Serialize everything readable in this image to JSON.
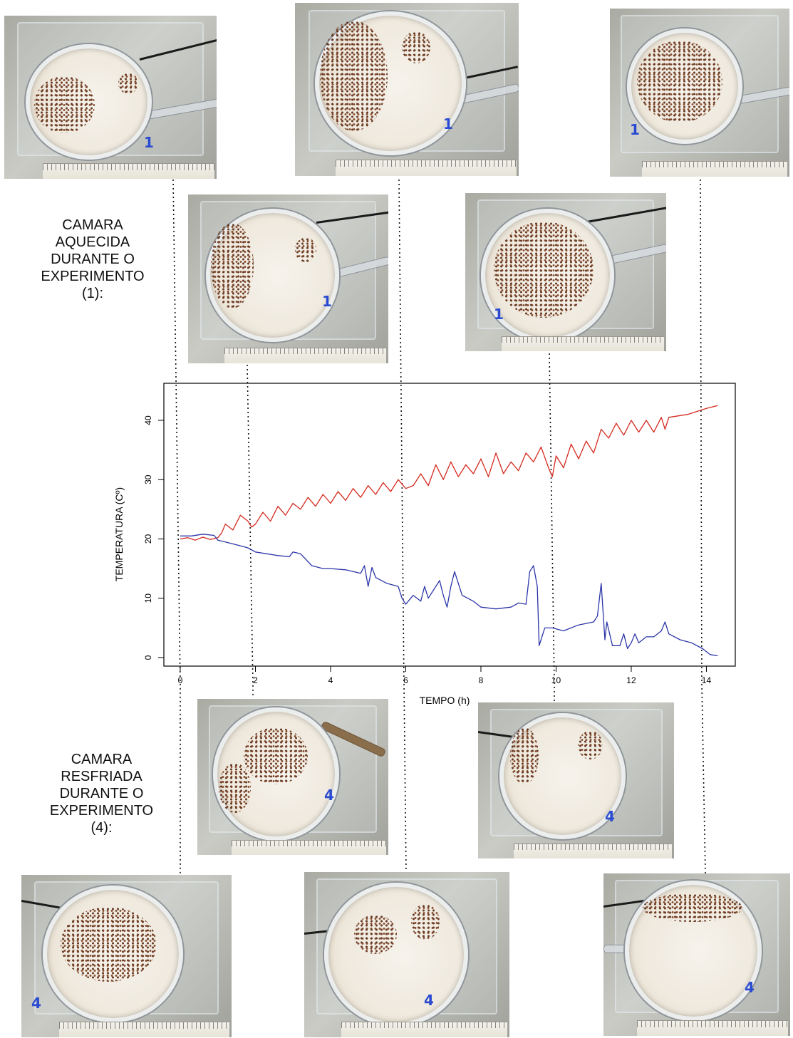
{
  "heated_label": [
    "CAMARA",
    "AQUECIDA",
    "DURANTE O",
    "EXPERIMENTO",
    "(1):"
  ],
  "cooled_label": [
    "CAMARA",
    "RESFRIADA",
    "DURANTE O",
    "EXPERIMENTO",
    "(4):"
  ],
  "photos": {
    "heated": [
      {
        "hour": 0,
        "chamber_mark": "1"
      },
      {
        "hour": 2,
        "chamber_mark": "1"
      },
      {
        "hour": 6,
        "chamber_mark": "1"
      },
      {
        "hour": 10,
        "chamber_mark": "1"
      },
      {
        "hour": 14,
        "chamber_mark": "1"
      }
    ],
    "cooled": [
      {
        "hour": 0,
        "chamber_mark": "4"
      },
      {
        "hour": 2,
        "chamber_mark": "4"
      },
      {
        "hour": 6,
        "chamber_mark": "4"
      },
      {
        "hour": 10,
        "chamber_mark": "4"
      },
      {
        "hour": 14,
        "chamber_mark": "4"
      }
    ]
  },
  "colors": {
    "heated_series": "#d42a1f",
    "cooled_series": "#2b35a8",
    "axis": "#000000",
    "guide_line": "#111111"
  },
  "chart_data": {
    "type": "line",
    "title": "",
    "xlabel": "TEMPO (h)",
    "ylabel": "TEMPERATURA (Cº)",
    "xlim": [
      0,
      14.2
    ],
    "ylim": [
      0,
      43
    ],
    "xticks": [
      0,
      2,
      4,
      6,
      8,
      10,
      12,
      14
    ],
    "yticks": [
      0,
      10,
      20,
      30,
      40
    ],
    "grid": false,
    "series": [
      {
        "color": "#d42a1f",
        "x": [
          0,
          0.2,
          0.4,
          0.6,
          0.8,
          1.0,
          1.1,
          1.2,
          1.4,
          1.6,
          1.8,
          1.9,
          2.0,
          2.2,
          2.4,
          2.6,
          2.8,
          3.0,
          3.2,
          3.4,
          3.6,
          3.8,
          4.0,
          4.2,
          4.4,
          4.6,
          4.8,
          5.0,
          5.2,
          5.4,
          5.6,
          5.8,
          6.0,
          6.2,
          6.4,
          6.6,
          6.8,
          7.0,
          7.2,
          7.4,
          7.6,
          7.8,
          8.0,
          8.2,
          8.4,
          8.6,
          8.8,
          9.0,
          9.2,
          9.4,
          9.6,
          9.8,
          9.9,
          10.0,
          10.2,
          10.4,
          10.6,
          10.8,
          11.0,
          11.2,
          11.4,
          11.6,
          11.8,
          12.0,
          12.2,
          12.4,
          12.6,
          12.8,
          12.9,
          13.0,
          13.5,
          14.0,
          14.3
        ],
        "y": [
          20,
          20.2,
          19.8,
          20.3,
          19.9,
          20.2,
          21,
          22.5,
          21.5,
          24,
          23,
          22,
          22.5,
          24.5,
          23,
          25.5,
          24,
          26,
          25,
          27,
          25.5,
          27.5,
          26,
          28,
          26.5,
          28.5,
          27,
          29,
          27.5,
          29.5,
          28,
          30,
          28.5,
          29,
          31,
          29,
          32.5,
          30,
          33,
          30.5,
          32.5,
          31,
          33.5,
          30.5,
          34.5,
          31,
          33,
          31.5,
          34.5,
          33,
          35.5,
          32,
          30.5,
          34,
          32,
          36,
          33.5,
          36.5,
          34.5,
          38.5,
          37,
          39.5,
          37.5,
          40,
          38,
          40,
          38,
          40.5,
          38.5,
          40.5,
          41,
          42,
          42.5
        ]
      },
      {
        "color": "#2b35a8",
        "x": [
          0,
          0.3,
          0.6,
          0.9,
          1.0,
          1.2,
          1.5,
          1.8,
          2.0,
          2.3,
          2.6,
          2.9,
          3.0,
          3.2,
          3.5,
          3.8,
          4.0,
          4.4,
          4.8,
          4.9,
          5.0,
          5.1,
          5.2,
          5.5,
          5.8,
          5.9,
          6.0,
          6.2,
          6.4,
          6.5,
          6.6,
          6.8,
          6.9,
          7.0,
          7.1,
          7.2,
          7.3,
          7.5,
          7.8,
          8.0,
          8.4,
          8.8,
          9.0,
          9.2,
          9.3,
          9.4,
          9.5,
          9.55,
          9.7,
          9.9,
          10.2,
          10.6,
          11.0,
          11.1,
          11.2,
          11.3,
          11.35,
          11.5,
          11.7,
          11.8,
          11.9,
          12.0,
          12.1,
          12.2,
          12.4,
          12.6,
          12.8,
          12.9,
          13.0,
          13.3,
          13.6,
          13.9,
          14.0,
          14.1,
          14.3
        ],
        "y": [
          20.5,
          20.5,
          20.8,
          20.6,
          19.8,
          19.5,
          19,
          18.5,
          17.8,
          17.5,
          17.2,
          17,
          17.8,
          17.5,
          15.5,
          15,
          15,
          14.8,
          14.2,
          15.5,
          12,
          15.2,
          13.5,
          12.5,
          12,
          10,
          9,
          10.5,
          9.5,
          12,
          10,
          12,
          13,
          10.5,
          8.5,
          12,
          14.5,
          10.5,
          9.5,
          8.5,
          8.2,
          8.5,
          9.2,
          9,
          14.5,
          15.5,
          12,
          2,
          5,
          5,
          4.5,
          5.5,
          6,
          7,
          12.5,
          3,
          6,
          2,
          2,
          4,
          1.5,
          2.5,
          4,
          2.5,
          3.5,
          3.5,
          4.5,
          6,
          4,
          3,
          2.5,
          1.5,
          1,
          0.5,
          0.3
        ]
      }
    ]
  }
}
